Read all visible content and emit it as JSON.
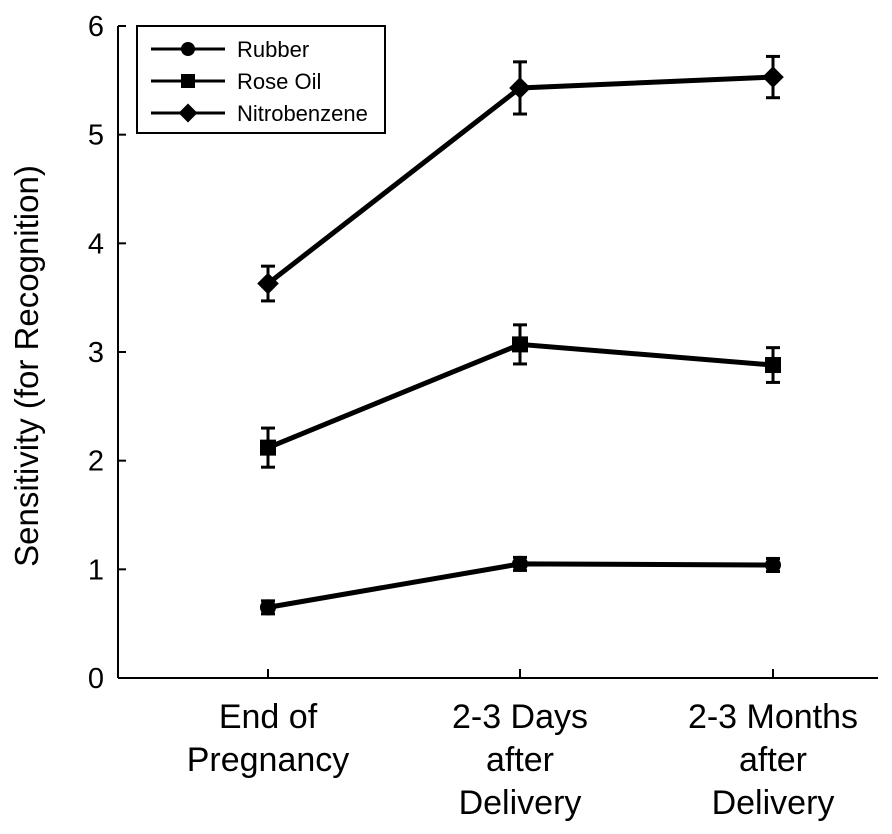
{
  "chart_data": {
    "type": "line",
    "title": "",
    "xlabel": "",
    "ylabel": "Sensitivity (for Recognition)",
    "ylim": [
      0,
      6
    ],
    "yticks": [
      "0",
      "1",
      "2",
      "3",
      "4",
      "5",
      "6"
    ],
    "categories": [
      [
        "End of",
        "Pregnancy"
      ],
      [
        "2-3 Days",
        "after",
        "Delivery"
      ],
      [
        "2-3 Months",
        "after",
        "Delivery"
      ]
    ],
    "legend_position": "top-left",
    "series": [
      {
        "name": "Rubber",
        "marker": "circle",
        "values": [
          0.65,
          1.05,
          1.04
        ],
        "errors": [
          0.06,
          0.06,
          0.06
        ]
      },
      {
        "name": "Rose Oil",
        "marker": "square",
        "values": [
          2.12,
          3.07,
          2.88
        ],
        "errors": [
          0.18,
          0.18,
          0.16
        ]
      },
      {
        "name": "Nitrobenzene",
        "marker": "diamond",
        "values": [
          3.63,
          5.43,
          5.53
        ],
        "errors": [
          0.16,
          0.24,
          0.19
        ]
      }
    ]
  }
}
